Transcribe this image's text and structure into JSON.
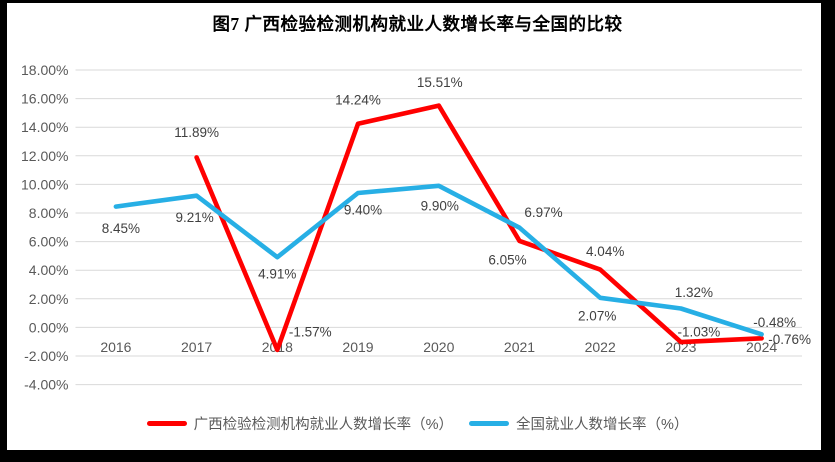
{
  "title": "图7 广西检验检测机构就业人数增长率与全国的比较",
  "colors": {
    "guangxi_line": "#FF0000",
    "national_line": "#27AFE5",
    "gridline": "#D9D9D9",
    "axis_label": "#595959",
    "data_label": "#404040",
    "frame_border": "#000000",
    "chart_background": "#FFFFFF"
  },
  "chart_data": {
    "type": "line",
    "title": "图7 广西检验检测机构就业人数增长率与全国的比较",
    "categories": [
      "2016",
      "2017",
      "2018",
      "2019",
      "2020",
      "2021",
      "2022",
      "2023",
      "2024"
    ],
    "y_axis": {
      "min": -4,
      "max": 18,
      "step": 2,
      "tick_suffix": "%",
      "tick_decimals": 2
    },
    "grid": true,
    "legend_position": "bottom",
    "series": [
      {
        "name": "广西检验检测机构就业人数增长率（%）",
        "color": "#FF0000",
        "start_index": 1,
        "values": [
          11.89,
          -1.57,
          14.24,
          15.51,
          6.05,
          4.04,
          -1.03,
          -0.76
        ],
        "labels": [
          "11.89%",
          "-1.57%",
          "14.24%",
          "15.51%",
          "6.05%",
          "4.04%",
          "-1.03%",
          "-0.76%"
        ],
        "label_offsets": [
          [
            0,
            -25
          ],
          [
            33,
            -18
          ],
          [
            0,
            -24
          ],
          [
            1,
            -23
          ],
          [
            -12,
            19
          ],
          [
            5,
            -18
          ],
          [
            18,
            -10
          ],
          [
            28,
            1
          ]
        ]
      },
      {
        "name": "全国就业人数增长率（%）",
        "color": "#27AFE5",
        "start_index": 0,
        "values": [
          8.45,
          9.21,
          4.91,
          9.4,
          9.9,
          6.97,
          2.07,
          1.32,
          -0.48
        ],
        "labels": [
          "8.45%",
          "9.21%",
          "4.91%",
          "9.40%",
          "9.90%",
          "6.97%",
          "2.07%",
          "1.32%",
          "-0.48%"
        ],
        "label_offsets": [
          [
            5,
            22
          ],
          [
            -2,
            22
          ],
          [
            0,
            17
          ],
          [
            5,
            17
          ],
          [
            1,
            20
          ],
          [
            24,
            -15
          ],
          [
            -3,
            18
          ],
          [
            13,
            -16
          ],
          [
            13,
            -12
          ]
        ]
      }
    ]
  },
  "legend": {
    "items": [
      {
        "label": "广西检验检测机构就业人数增长率（%）"
      },
      {
        "label": "全国就业人数增长率（%）"
      }
    ]
  }
}
